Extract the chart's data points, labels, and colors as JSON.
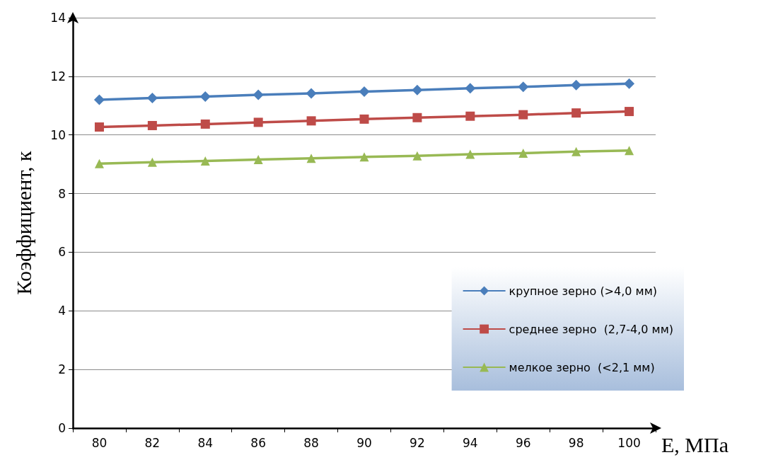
{
  "chart_data": {
    "type": "line",
    "xlabel": "E, МПа",
    "ylabel": "Коэффициент, к",
    "categories": [
      "80",
      "82",
      "84",
      "86",
      "88",
      "90",
      "92",
      "94",
      "96",
      "98",
      "100"
    ],
    "series": [
      {
        "name": "крупное зерно (>4,0 мм)",
        "color": "#4a7ebb",
        "marker": "diamond",
        "values": [
          11.2,
          11.26,
          11.31,
          11.37,
          11.42,
          11.48,
          11.53,
          11.59,
          11.64,
          11.7,
          11.75
        ]
      },
      {
        "name": "среднее зерно  (2,7-4,0 мм)",
        "color": "#be4b48",
        "marker": "square",
        "values": [
          10.27,
          10.32,
          10.37,
          10.43,
          10.48,
          10.54,
          10.59,
          10.64,
          10.69,
          10.75,
          10.8
        ]
      },
      {
        "name": "мелкое зерно  (<2,1 мм)",
        "color": "#98b954",
        "marker": "triangle",
        "values": [
          9.02,
          9.07,
          9.11,
          9.16,
          9.2,
          9.25,
          9.29,
          9.34,
          9.38,
          9.43,
          9.47
        ]
      }
    ],
    "ylim": [
      0,
      14
    ],
    "yticks": [
      0,
      2,
      4,
      6,
      8,
      10,
      12,
      14
    ],
    "grid": "y",
    "legend": "bottom right",
    "line_style": "solid"
  }
}
